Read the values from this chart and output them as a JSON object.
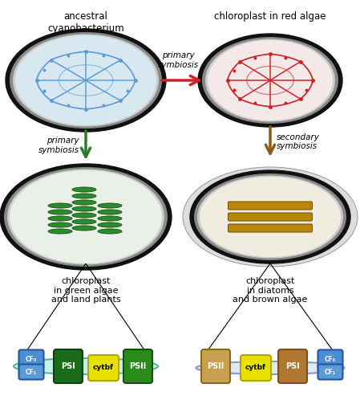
{
  "bg_color": "#ffffff",
  "arrow_red_color": "#cc2222",
  "arrow_green_color": "#2d7a2d",
  "arrow_brown_color": "#8B5A14",
  "blue_line_color": "#5b9bd5",
  "red_line_color": "#cc2222",
  "green_disk_color": "#2d8a2d",
  "green_disk_edge": "#1a5a1a",
  "brown_band_color": "#b8860b",
  "brown_band_edge": "#7a5800",
  "labels": {
    "top_left": "ancestral\ncyanobacterium",
    "top_right": "chloroplast in red algae",
    "bottom_left": "chloroplast\nin green algae\nand land plants",
    "bottom_right": "chloroplast\nin diatoms\nand brown algae",
    "arrow_h": "primary\nsymbiosis",
    "arrow_left_v": "primary\nsymbiosis",
    "arrow_right_v": "secondary\nsymbiosis"
  }
}
